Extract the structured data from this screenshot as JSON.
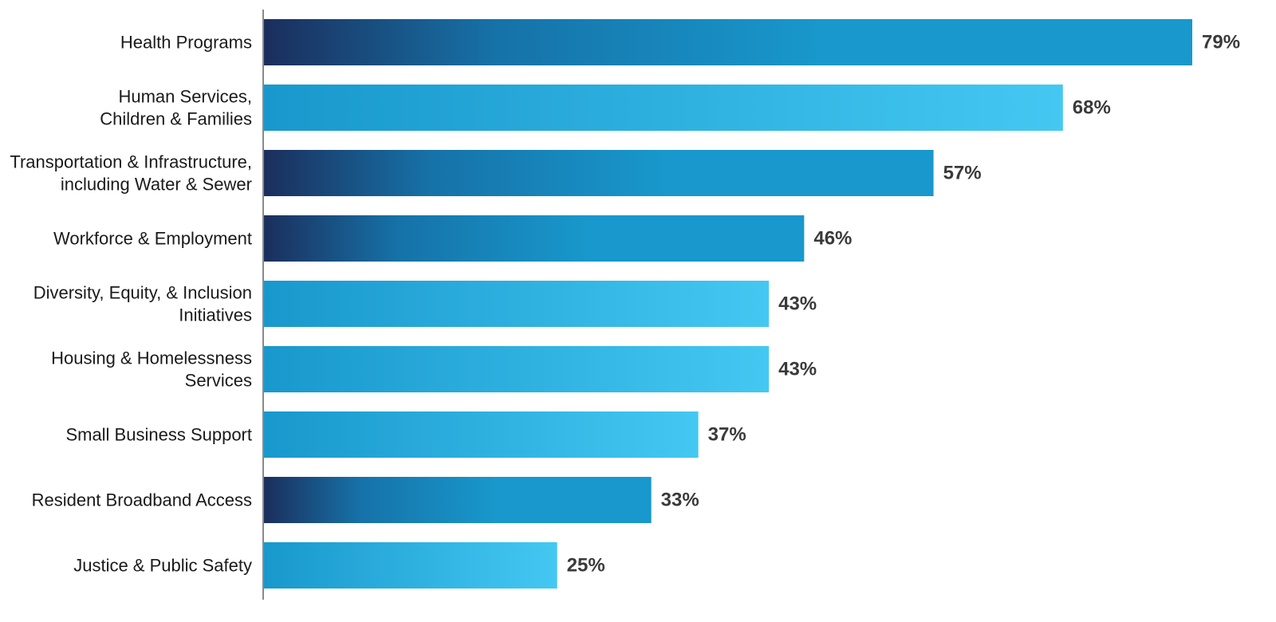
{
  "chart_data": {
    "type": "bar",
    "orientation": "horizontal",
    "title": "",
    "xlabel": "",
    "ylabel": "",
    "xlim": [
      0,
      79
    ],
    "grid": false,
    "legend": "none",
    "unit": "%",
    "categories": [
      [
        "Health Programs"
      ],
      [
        "Human Services,",
        "Children & Families"
      ],
      [
        "Transportation & Infrastructure,",
        "including Water & Sewer"
      ],
      [
        "Workforce & Employment"
      ],
      [
        "Diversity, Equity, & Inclusion",
        "Initiatives"
      ],
      [
        "Housing & Homelessness",
        "Services"
      ],
      [
        "Small Business Support"
      ],
      [
        "Resident Broadband Access"
      ],
      [
        "Justice & Public Safety"
      ]
    ],
    "values": [
      79,
      68,
      57,
      46,
      43,
      43,
      37,
      33,
      25
    ],
    "value_labels": [
      "79%",
      "68%",
      "57%",
      "46%",
      "43%",
      "43%",
      "37%",
      "33%",
      "25%"
    ],
    "bar_styles": [
      "dark",
      "light",
      "dark",
      "dark",
      "light",
      "light",
      "light",
      "dark",
      "light"
    ],
    "colors": {
      "dark_start": "#1b2e5c",
      "dark_mid": "#1672a8",
      "dark_end": "#1898cc",
      "light_start": "#1898cc",
      "light_end": "#44c8f2",
      "axis": "#8a8a8a"
    }
  }
}
